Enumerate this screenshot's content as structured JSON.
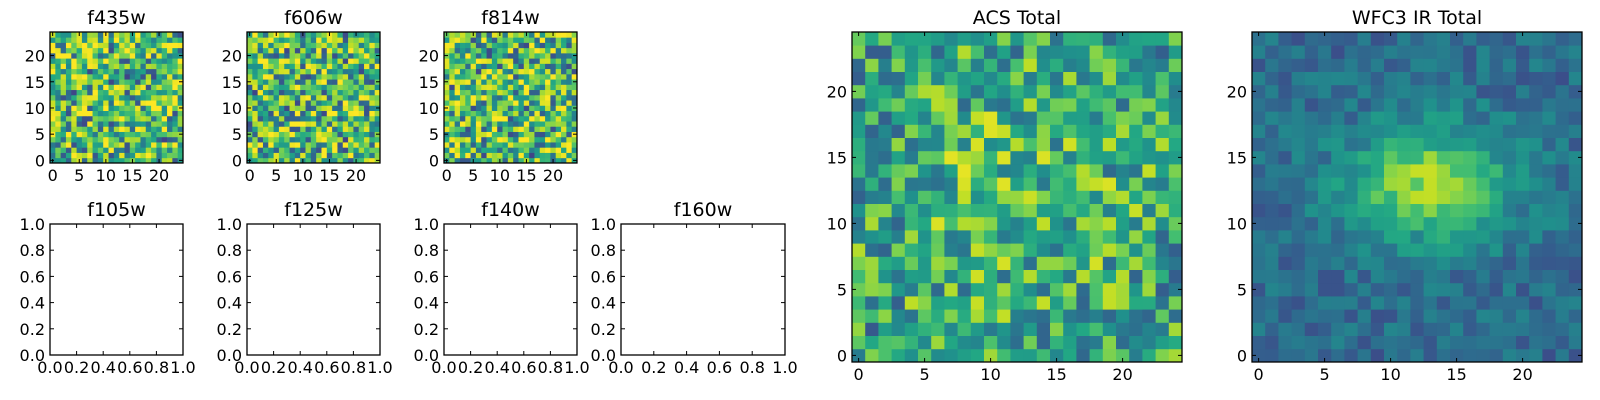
{
  "chart_data": [
    {
      "type": "heatmap",
      "title": "f435w",
      "xticks": [
        "0",
        "5",
        "10",
        "15",
        "20"
      ],
      "yticks": [
        "0",
        "5",
        "10",
        "15",
        "20"
      ],
      "xlim": [
        -0.5,
        24.5
      ],
      "ylim": [
        -0.5,
        24.5
      ],
      "grid": false,
      "colormap": "viridis",
      "seed": 11,
      "pattern": "noise"
    },
    {
      "type": "heatmap",
      "title": "f606w",
      "xticks": [
        "0",
        "5",
        "10",
        "15",
        "20"
      ],
      "yticks": [
        "0",
        "5",
        "10",
        "15",
        "20"
      ],
      "xlim": [
        -0.5,
        24.5
      ],
      "ylim": [
        -0.5,
        24.5
      ],
      "grid": false,
      "colormap": "viridis",
      "seed": 23,
      "pattern": "noise"
    },
    {
      "type": "heatmap",
      "title": "f814w",
      "xticks": [
        "0",
        "5",
        "10",
        "15",
        "20"
      ],
      "yticks": [
        "0",
        "5",
        "10",
        "15",
        "20"
      ],
      "xlim": [
        -0.5,
        24.5
      ],
      "ylim": [
        -0.5,
        24.5
      ],
      "grid": false,
      "colormap": "viridis",
      "seed": 37,
      "pattern": "noise"
    },
    {
      "type": "empty",
      "title": "f105w",
      "xticks": [
        "0.0",
        "0.2",
        "0.4",
        "0.6",
        "0.8",
        "1.0"
      ],
      "yticks": [
        "0.0",
        "0.2",
        "0.4",
        "0.6",
        "0.8",
        "1.0"
      ],
      "xlim": [
        0,
        1
      ],
      "ylim": [
        0,
        1
      ]
    },
    {
      "type": "empty",
      "title": "f125w",
      "xticks": [
        "0.0",
        "0.2",
        "0.4",
        "0.6",
        "0.8",
        "1.0"
      ],
      "yticks": [
        "0.0",
        "0.2",
        "0.4",
        "0.6",
        "0.8",
        "1.0"
      ],
      "xlim": [
        0,
        1
      ],
      "ylim": [
        0,
        1
      ]
    },
    {
      "type": "empty",
      "title": "f140w",
      "xticks": [
        "0.0",
        "0.2",
        "0.4",
        "0.6",
        "0.8",
        "1.0"
      ],
      "yticks": [
        "0.0",
        "0.2",
        "0.4",
        "0.6",
        "0.8",
        "1.0"
      ],
      "xlim": [
        0,
        1
      ],
      "ylim": [
        0,
        1
      ]
    },
    {
      "type": "empty",
      "title": "f160w",
      "xticks": [
        "0.0",
        "0.2",
        "0.4",
        "0.6",
        "0.8",
        "1.0"
      ],
      "yticks": [
        "0.0",
        "0.2",
        "0.4",
        "0.6",
        "0.8",
        "1.0"
      ],
      "xlim": [
        0,
        1
      ],
      "ylim": [
        0,
        1
      ]
    },
    {
      "type": "heatmap",
      "title": "ACS Total",
      "xticks": [
        "0",
        "5",
        "10",
        "15",
        "20"
      ],
      "yticks": [
        "0",
        "5",
        "10",
        "15",
        "20"
      ],
      "xlim": [
        -0.5,
        24.5
      ],
      "ylim": [
        -0.5,
        24.5
      ],
      "grid": false,
      "colormap": "viridis",
      "seed": 51,
      "pattern": "noise-center"
    },
    {
      "type": "heatmap",
      "title": "WFC3 IR Total",
      "xticks": [
        "0",
        "5",
        "10",
        "15",
        "20"
      ],
      "yticks": [
        "0",
        "5",
        "10",
        "15",
        "20"
      ],
      "xlim": [
        -0.5,
        24.5
      ],
      "ylim": [
        -0.5,
        24.5
      ],
      "grid": false,
      "colormap": "viridis",
      "seed": 77,
      "pattern": "blob"
    }
  ]
}
